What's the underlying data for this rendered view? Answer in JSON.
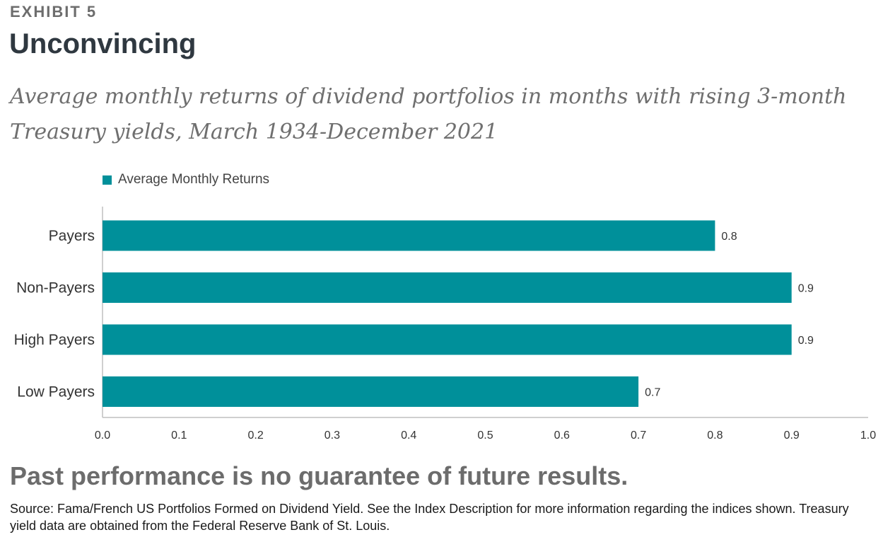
{
  "header": {
    "exhibit": "EXHIBIT 5",
    "title": "Unconvincing",
    "subtitle": "Average monthly returns of dividend portfolios in months with rising 3-month Treasury yields, March 1934-December 2021"
  },
  "colors": {
    "bar": "#00909a",
    "axis": "#bfbfbf",
    "text": "#333333"
  },
  "chart_data": {
    "type": "bar",
    "orientation": "horizontal",
    "categories": [
      "Payers",
      "Non-Payers",
      "High Payers",
      "Low Payers"
    ],
    "series": [
      {
        "name": "Average Monthly Returns",
        "values": [
          0.8,
          0.9,
          0.9,
          0.7
        ]
      }
    ],
    "data_labels": [
      "0.8",
      "0.9",
      "0.9",
      "0.7"
    ],
    "xlim": [
      0,
      1.0
    ],
    "xticks": [
      "0.0",
      "0.1",
      "0.2",
      "0.3",
      "0.4",
      "0.5",
      "0.6",
      "0.7",
      "0.8",
      "0.9",
      "1.0"
    ],
    "legend_position": "top-left",
    "grid": false
  },
  "footer": {
    "notice": "Past performance is no guarantee of future results.",
    "source": "Source: Fama/French US Portfolios Formed on Dividend Yield. See the Index Description for more information regarding the indices shown. Treasury yield data are obtained from the Federal Reserve Bank of St. Louis."
  }
}
